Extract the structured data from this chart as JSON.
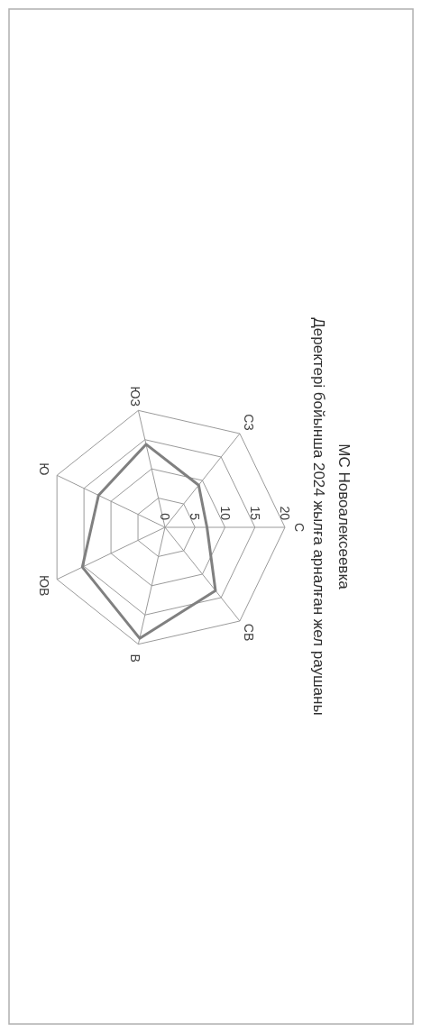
{
  "chart_data": {
    "type": "radar",
    "title": "МС Новоалексеевка",
    "subtitle": "Деректері бойынша 2024 жылға арналған жел раушаны",
    "categories": [
      "С",
      "СВ",
      "В",
      "ЮВ",
      "Ю",
      "ЮЗ",
      "СЗ"
    ],
    "series": [
      {
        "color": "#808080",
        "values": [
          7,
          13.5,
          19,
          15.3,
          12.3,
          14.2,
          9
        ]
      }
    ],
    "ylim": [
      0,
      20
    ],
    "yticks": [
      0,
      5,
      10,
      15,
      20
    ],
    "grid": true
  }
}
